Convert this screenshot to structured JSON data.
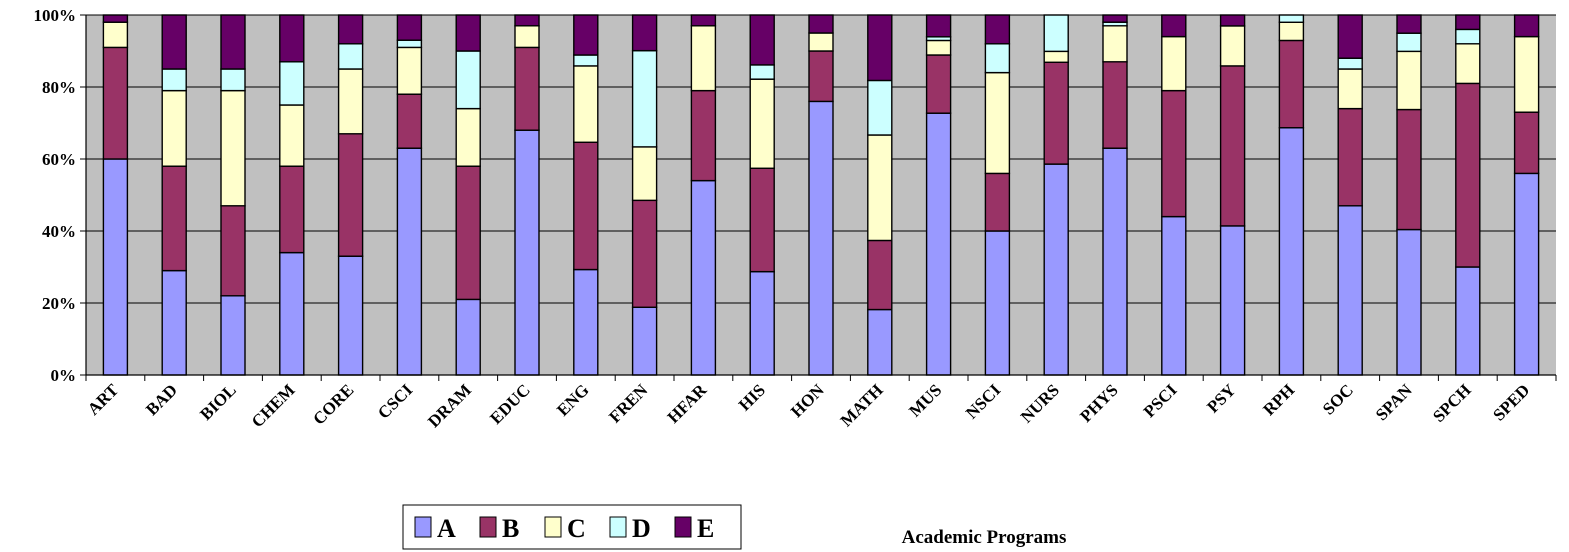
{
  "chart_data": {
    "type": "bar",
    "stacked": true,
    "percent": true,
    "title": "",
    "xlabel": "Academic Programs",
    "ylabel": "",
    "ylim": [
      0,
      100
    ],
    "yticks": [
      "0%",
      "20%",
      "40%",
      "60%",
      "80%",
      "100%"
    ],
    "grid": true,
    "legend_position": "bottom",
    "categories": [
      "ART",
      "BAD",
      "BIOL",
      "CHEM",
      "CORE",
      "CSCI",
      "DRAM",
      "EDUC",
      "ENG",
      "FREN",
      "HFAR",
      "HIS",
      "HON",
      "MATH",
      "MUS",
      "NSCI",
      "NURS",
      "PHYS",
      "PSCI",
      "PSY",
      "RPH",
      "SOC",
      "SPAN",
      "SPCH",
      "SPED"
    ],
    "series": [
      {
        "name": "A",
        "color": "#9999ff",
        "values": [
          60,
          29,
          22,
          34,
          33,
          63,
          21,
          68,
          29,
          19,
          54,
          29,
          76,
          18,
          72,
          40,
          58,
          63,
          44,
          41,
          68,
          47,
          40,
          30,
          56
        ]
      },
      {
        "name": "B",
        "color": "#993366",
        "values": [
          31,
          29,
          25,
          24,
          34,
          15,
          37,
          23,
          35,
          30,
          25,
          29,
          14,
          19,
          16,
          16,
          28,
          24,
          35,
          44,
          24,
          27,
          33,
          51,
          17
        ]
      },
      {
        "name": "C",
        "color": "#ffffcc",
        "values": [
          7,
          21,
          32,
          17,
          18,
          13,
          16,
          6,
          21,
          15,
          18,
          25,
          5,
          29,
          4,
          28,
          3,
          10,
          15,
          11,
          5,
          11,
          16,
          11,
          21
        ]
      },
      {
        "name": "D",
        "color": "#ccffff",
        "values": [
          0,
          6,
          6,
          12,
          7,
          2,
          16,
          0,
          3,
          27,
          0,
          4,
          0,
          15,
          1,
          8,
          10,
          1,
          0,
          0,
          2,
          3,
          5,
          4,
          0
        ]
      },
      {
        "name": "E",
        "color": "#660066",
        "values": [
          2,
          15,
          15,
          13,
          8,
          7,
          10,
          3,
          11,
          10,
          3,
          14,
          5,
          18,
          6,
          8,
          0,
          2,
          6,
          3,
          0,
          12,
          5,
          4,
          6
        ]
      }
    ]
  }
}
